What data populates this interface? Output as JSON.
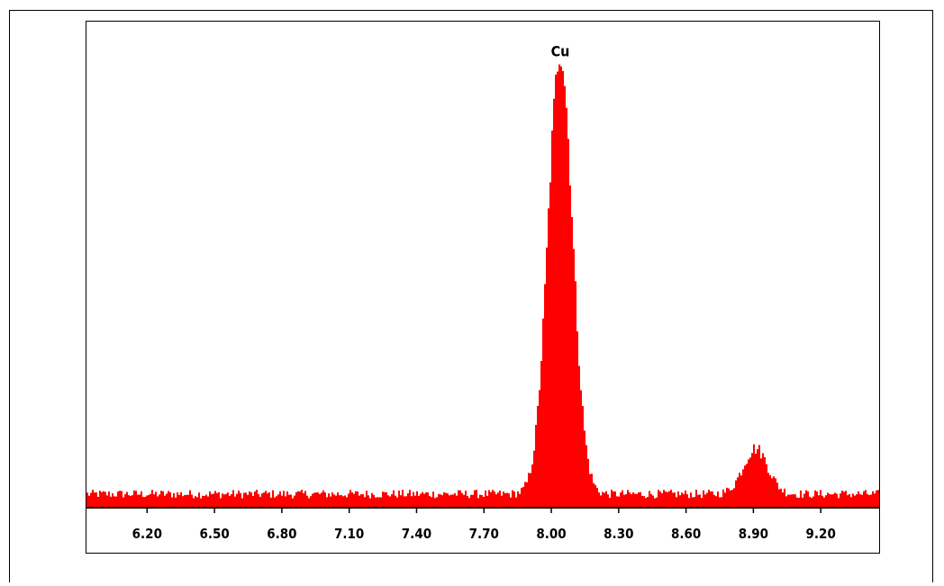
{
  "chart_data": {
    "type": "area",
    "title": "",
    "xlabel": "",
    "ylabel": "",
    "xlim": [
      5.93,
      9.46
    ],
    "ylim": [
      0,
      320
    ],
    "ticks": [
      6.2,
      6.5,
      6.8,
      7.1,
      7.4,
      7.7,
      8.0,
      8.3,
      8.6,
      8.9,
      9.2
    ],
    "tick_labels": [
      "6.20",
      "6.50",
      "6.80",
      "7.10",
      "7.40",
      "7.70",
      "8.00",
      "8.30",
      "8.60",
      "8.90",
      "9.20"
    ],
    "baseline": 9,
    "peaks": [
      {
        "label": "Cu",
        "center": 8.04,
        "height": 290,
        "sigma": 0.055
      },
      {
        "label": "",
        "center": 8.91,
        "height": 30,
        "sigma": 0.055
      }
    ],
    "grid": false,
    "legend": "none",
    "fill_color": "#ff0000",
    "axis_color": "#000000"
  }
}
